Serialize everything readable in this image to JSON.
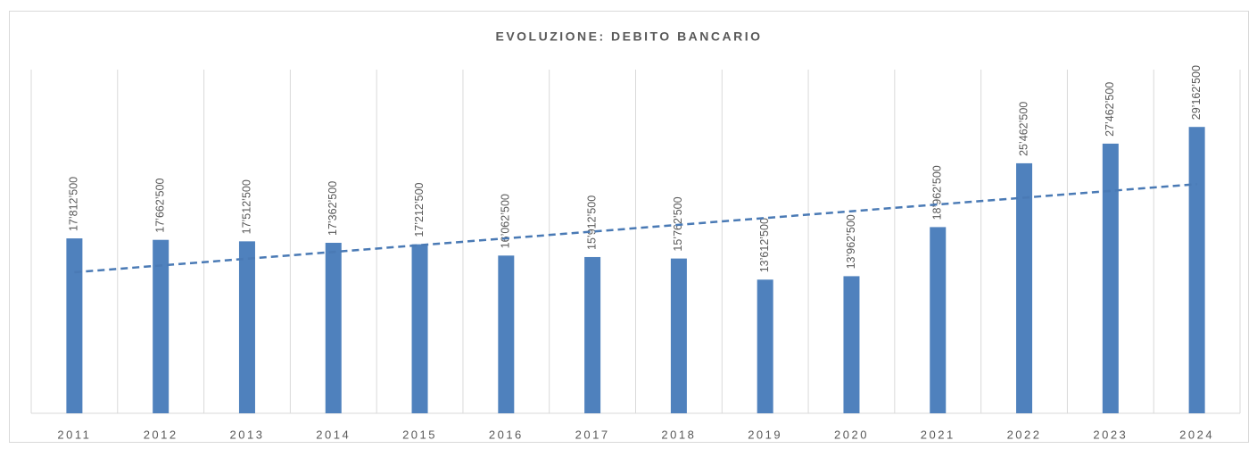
{
  "chart_data": {
    "type": "bar",
    "title": "EVOLUZIONE: DEBITO BANCARIO",
    "categories": [
      "2011",
      "2012",
      "2013",
      "2014",
      "2015",
      "2016",
      "2017",
      "2018",
      "2019",
      "2020",
      "2021",
      "2022",
      "2023",
      "2024"
    ],
    "values": [
      17812500,
      17662500,
      17512500,
      17362500,
      17212500,
      16062500,
      15912500,
      15762500,
      13612500,
      13962500,
      18962500,
      25462500,
      27462500,
      29162500
    ],
    "value_labels": [
      "17’812’500",
      "17’662’500",
      "17’512’500",
      "17’362’500",
      "17’212’500",
      "16’062’500",
      "15’912’500",
      "15’762’500",
      "13’612’500",
      "13’962’500",
      "18’962’500",
      "25’462’500",
      "27’462’500",
      "29’162’500"
    ],
    "color": "#4f81bd",
    "ylim": [
      0,
      35000000
    ],
    "grid": true,
    "trendline": {
      "type": "linear",
      "dashed": true,
      "color": "#4a7ab5"
    }
  }
}
